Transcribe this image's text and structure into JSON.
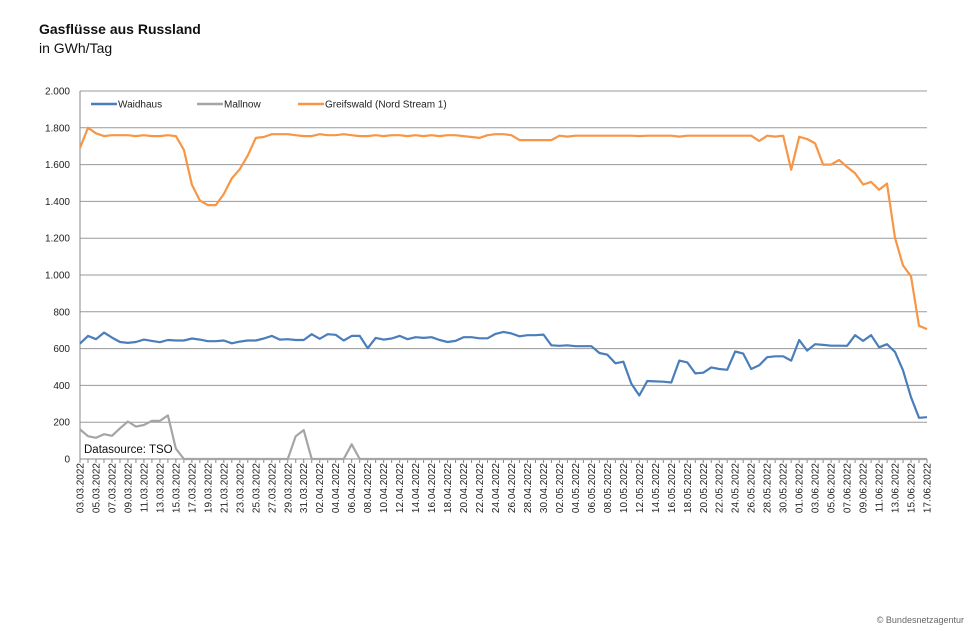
{
  "header": {
    "title": "Gasflüsse aus Russland",
    "subtitle": "in GWh/Tag"
  },
  "footer": {
    "credit": "© Bundesnetzagentur"
  },
  "chart_data": {
    "type": "line",
    "title": "Gasflüsse aus Russland",
    "ylabel": "in GWh/Tag",
    "xlabel": "",
    "ylim": [
      0,
      2000
    ],
    "grid": true,
    "legend_position": "top-left",
    "annotation": "Datasource: TSO",
    "y_tick_values": [
      0,
      200,
      400,
      600,
      800,
      1000,
      1200,
      1400,
      1600,
      1800,
      2000
    ],
    "y_tick_labels": [
      "0",
      "200",
      "400",
      "600",
      "800",
      "1.000",
      "1.200",
      "1.400",
      "1.600",
      "1.800",
      "2.000"
    ],
    "x_start": "03.03.2022",
    "x_end": "17.06.2022",
    "x_tick_labels": [
      "03.03.2022",
      "05.03.2022",
      "07.03.2022",
      "09.03.2022",
      "11.03.2022",
      "13.03.2022",
      "15.03.2022",
      "17.03.2022",
      "19.03.2022",
      "21.03.2022",
      "23.03.2022",
      "25.03.2022",
      "27.03.2022",
      "29.03.2022",
      "31.03.2022",
      "02.04.2022",
      "04.04.2022",
      "06.04.2022",
      "08.04.2022",
      "10.04.2022",
      "12.04.2022",
      "14.04.2022",
      "16.04.2022",
      "18.04.2022",
      "20.04.2022",
      "22.04.2022",
      "24.04.2022",
      "26.04.2022",
      "28.04.2022",
      "30.04.2022",
      "02.05.2022",
      "04.05.2022",
      "06.05.2022",
      "08.05.2022",
      "10.05.2022",
      "12.05.2022",
      "14.05.2022",
      "16.05.2022",
      "18.05.2022",
      "20.05.2022",
      "22.05.2022",
      "24.05.2022",
      "26.05.2022",
      "28.05.2022",
      "30.05.2022",
      "01.06.2022",
      "03.06.2022",
      "05.06.2022",
      "07.06.2022",
      "09.06.2022",
      "11.06.2022",
      "13.06.2022",
      "15.06.2022",
      "17.06.2022"
    ],
    "series": [
      {
        "name": "Waidhaus",
        "color": "#4a7ebb",
        "values": [
          627,
          669,
          651,
          687,
          660,
          636,
          631,
          636,
          649,
          642,
          635,
          647,
          644,
          644,
          655,
          649,
          640,
          640,
          644,
          629,
          638,
          644,
          644,
          655,
          669,
          649,
          651,
          647,
          647,
          678,
          653,
          678,
          675,
          644,
          669,
          669,
          602,
          658,
          649,
          655,
          669,
          651,
          662,
          658,
          662,
          647,
          636,
          642,
          662,
          662,
          656,
          656,
          680,
          691,
          682,
          667,
          673,
          673,
          676,
          618,
          615,
          618,
          613,
          613,
          613,
          576,
          567,
          520,
          529,
          410,
          345,
          424,
          422,
          420,
          416,
          535,
          525,
          465,
          469,
          498,
          489,
          485,
          584,
          573,
          489,
          509,
          553,
          558,
          558,
          535,
          647,
          589,
          624,
          620,
          616,
          616,
          615,
          673,
          642,
          673,
          607,
          624,
          582,
          482,
          336,
          224,
          227
        ]
      },
      {
        "name": "Mallnow",
        "color": "#a5a5a5",
        "values": [
          161,
          124,
          115,
          135,
          126,
          167,
          204,
          176,
          185,
          207,
          207,
          237,
          56,
          0,
          0,
          0,
          0,
          0,
          0,
          0,
          0,
          0,
          0,
          0,
          0,
          0,
          0,
          124,
          157,
          0,
          0,
          0,
          0,
          0,
          80,
          0,
          0,
          0,
          0,
          0,
          0,
          0,
          0,
          0,
          0,
          0,
          0,
          0,
          0,
          0,
          0,
          0,
          0,
          0,
          0,
          0,
          0,
          0,
          0,
          0,
          0,
          0,
          0,
          0,
          0,
          0,
          0,
          0,
          0,
          0,
          0,
          0,
          0,
          0,
          0,
          0,
          0,
          0,
          0,
          0,
          0,
          0,
          0,
          0,
          0,
          0,
          0,
          0,
          0,
          0,
          0,
          0,
          0,
          0,
          0,
          0,
          0,
          0,
          0,
          0,
          0,
          0,
          0,
          0,
          0,
          0,
          0
        ]
      },
      {
        "name": "Greifswald (Nord Stream 1)",
        "color": "#f79646",
        "values": [
          1690,
          1800,
          1770,
          1755,
          1760,
          1760,
          1760,
          1755,
          1760,
          1755,
          1755,
          1760,
          1755,
          1680,
          1490,
          1405,
          1380,
          1380,
          1440,
          1525,
          1575,
          1650,
          1745,
          1750,
          1765,
          1765,
          1765,
          1760,
          1755,
          1755,
          1765,
          1760,
          1760,
          1765,
          1760,
          1755,
          1755,
          1760,
          1755,
          1760,
          1760,
          1755,
          1760,
          1755,
          1760,
          1755,
          1760,
          1760,
          1755,
          1750,
          1745,
          1760,
          1765,
          1765,
          1760,
          1733,
          1733,
          1733,
          1733,
          1733,
          1757,
          1752,
          1757,
          1757,
          1757,
          1757,
          1757,
          1757,
          1757,
          1757,
          1755,
          1757,
          1757,
          1757,
          1757,
          1752,
          1757,
          1757,
          1757,
          1757,
          1757,
          1757,
          1757,
          1757,
          1757,
          1728,
          1757,
          1752,
          1757,
          1572,
          1751,
          1739,
          1715,
          1600,
          1600,
          1625,
          1587,
          1553,
          1492,
          1506,
          1463,
          1497,
          1202,
          1052,
          993,
          724,
          706
        ]
      }
    ]
  }
}
